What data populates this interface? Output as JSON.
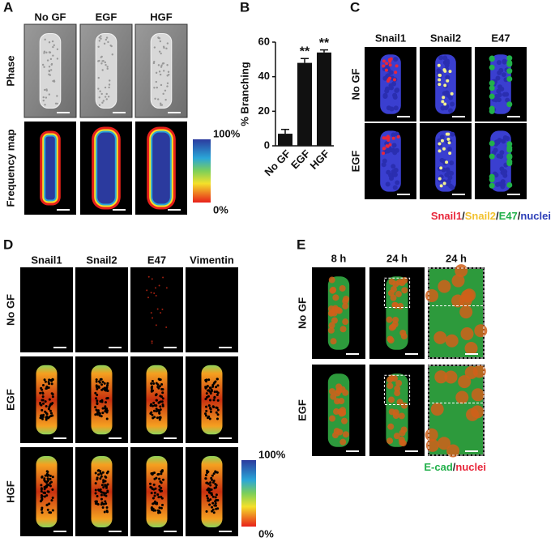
{
  "figure": {
    "A": {
      "label": "A",
      "columns": [
        "No GF",
        "EGF",
        "HGF"
      ],
      "rows": [
        "Phase",
        "Frequency map"
      ],
      "colorbar": [
        "100%",
        "0%"
      ]
    },
    "C": {
      "label": "C",
      "columns": [
        "Snail1",
        "Snail2",
        "E47"
      ],
      "rows": [
        "No GF",
        "EGF"
      ],
      "legend": [
        {
          "text": "Snail1",
          "color": "#e8263a"
        },
        {
          "text": "/",
          "color": "#222222"
        },
        {
          "text": "Snail2",
          "color": "#f2c230"
        },
        {
          "text": "/",
          "color": "#222222"
        },
        {
          "text": "E47",
          "color": "#22b04b"
        },
        {
          "text": "/",
          "color": "#222222"
        },
        {
          "text": "nuclei",
          "color": "#2c3eb8"
        }
      ]
    },
    "D": {
      "label": "D",
      "columns": [
        "Snail1",
        "Snail2",
        "E47",
        "Vimentin"
      ],
      "rows": [
        "No GF",
        "EGF",
        "HGF"
      ],
      "colorbar": [
        "100%",
        "0%"
      ]
    },
    "E": {
      "label": "E",
      "columns": [
        "8 h",
        "24 h",
        "24 h"
      ],
      "rows": [
        "No GF",
        "EGF"
      ],
      "legend": [
        {
          "text": "E-cad",
          "color": "#22b04b"
        },
        {
          "text": "/",
          "color": "#222222"
        },
        {
          "text": "nuclei",
          "color": "#e8263a"
        }
      ]
    }
  },
  "chart_data": {
    "type": "bar",
    "label": "B",
    "ylabel": "% Branching",
    "categories": [
      "No GF",
      "EGF",
      "HGF"
    ],
    "values": [
      7,
      48,
      54
    ],
    "errors": [
      2.5,
      2.5,
      1.5
    ],
    "color": "#111111",
    "ylim": [
      0,
      60
    ],
    "yticks": [
      0,
      20,
      40,
      60
    ],
    "annotations": [
      {
        "x": "EGF",
        "text": "**"
      },
      {
        "x": "HGF",
        "text": "**"
      }
    ]
  }
}
